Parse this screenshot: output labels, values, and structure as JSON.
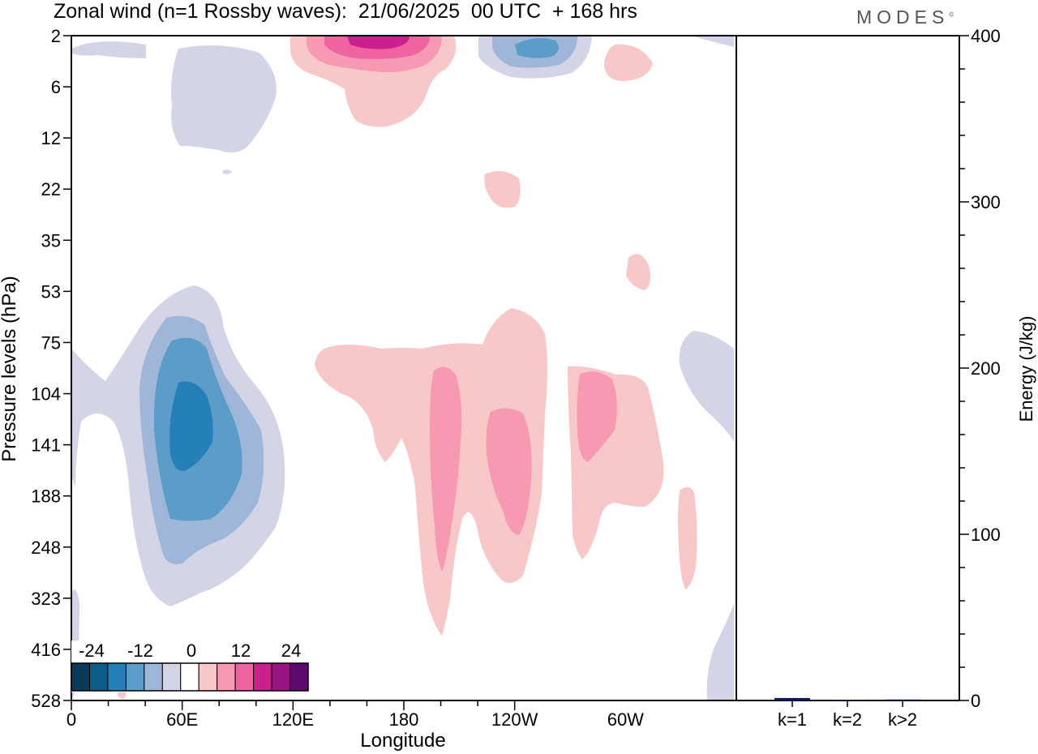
{
  "header": {
    "title": "Zonal wind (n=1 Rossby waves):  21/06/2025  00 UTC  + 168 hrs",
    "brand": "MODES"
  },
  "chart_data": [
    {
      "type": "heatmap",
      "title": "Zonal wind (n=1 Rossby waves):  21/06/2025  00 UTC  + 168 hrs",
      "xlabel": "Longitude",
      "ylabel": "Pressure levels (hPa)",
      "x_ticks": [
        "0",
        "60E",
        "120E",
        "180",
        "120W",
        "60W"
      ],
      "x_range_deg_east": [
        0,
        360
      ],
      "y_ticks": [
        "2",
        "6",
        "12",
        "22",
        "35",
        "53",
        "75",
        "104",
        "141",
        "188",
        "248",
        "323",
        "416",
        "528"
      ],
      "y_scale": "pressure levels (ordinal)",
      "colorbar": {
        "labels": [
          "-24",
          "-12",
          "0",
          "12",
          "24"
        ],
        "colors": [
          "#0a3a5a",
          "#0d5d8c",
          "#2680b8",
          "#5c9cc9",
          "#9fb6d8",
          "#d3d4e6",
          "#ffffff",
          "#f8c8c8",
          "#f799b2",
          "#ee63a0",
          "#cc1f8e",
          "#9a1482",
          "#5c0a6e"
        ]
      },
      "features": [
        {
          "sign": "negative",
          "lon": 60,
          "pressure_hPa": 141,
          "peak": -20
        },
        {
          "sign": "negative",
          "lon": 240,
          "pressure_hPa": 2,
          "peak": -14
        },
        {
          "sign": "positive",
          "lon": 165,
          "pressure_hPa": 2,
          "peak": 20
        },
        {
          "sign": "positive",
          "lon": 195,
          "pressure_hPa": 141,
          "peak": 12
        },
        {
          "sign": "positive",
          "lon": 235,
          "pressure_hPa": 141,
          "peak": 12
        },
        {
          "sign": "positive",
          "lon": 290,
          "pressure_hPa": 120,
          "peak": 10
        }
      ]
    },
    {
      "type": "bar",
      "categories": [
        "k=1",
        "k=2",
        "k>2"
      ],
      "values": [
        1.5,
        0.3,
        0.6
      ],
      "ylabel": "Energy (J/kg)",
      "ylim": [
        0,
        400
      ],
      "y_ticks": [
        "0",
        "100",
        "200",
        "300",
        "400"
      ],
      "bar_color": "#101a60"
    }
  ]
}
